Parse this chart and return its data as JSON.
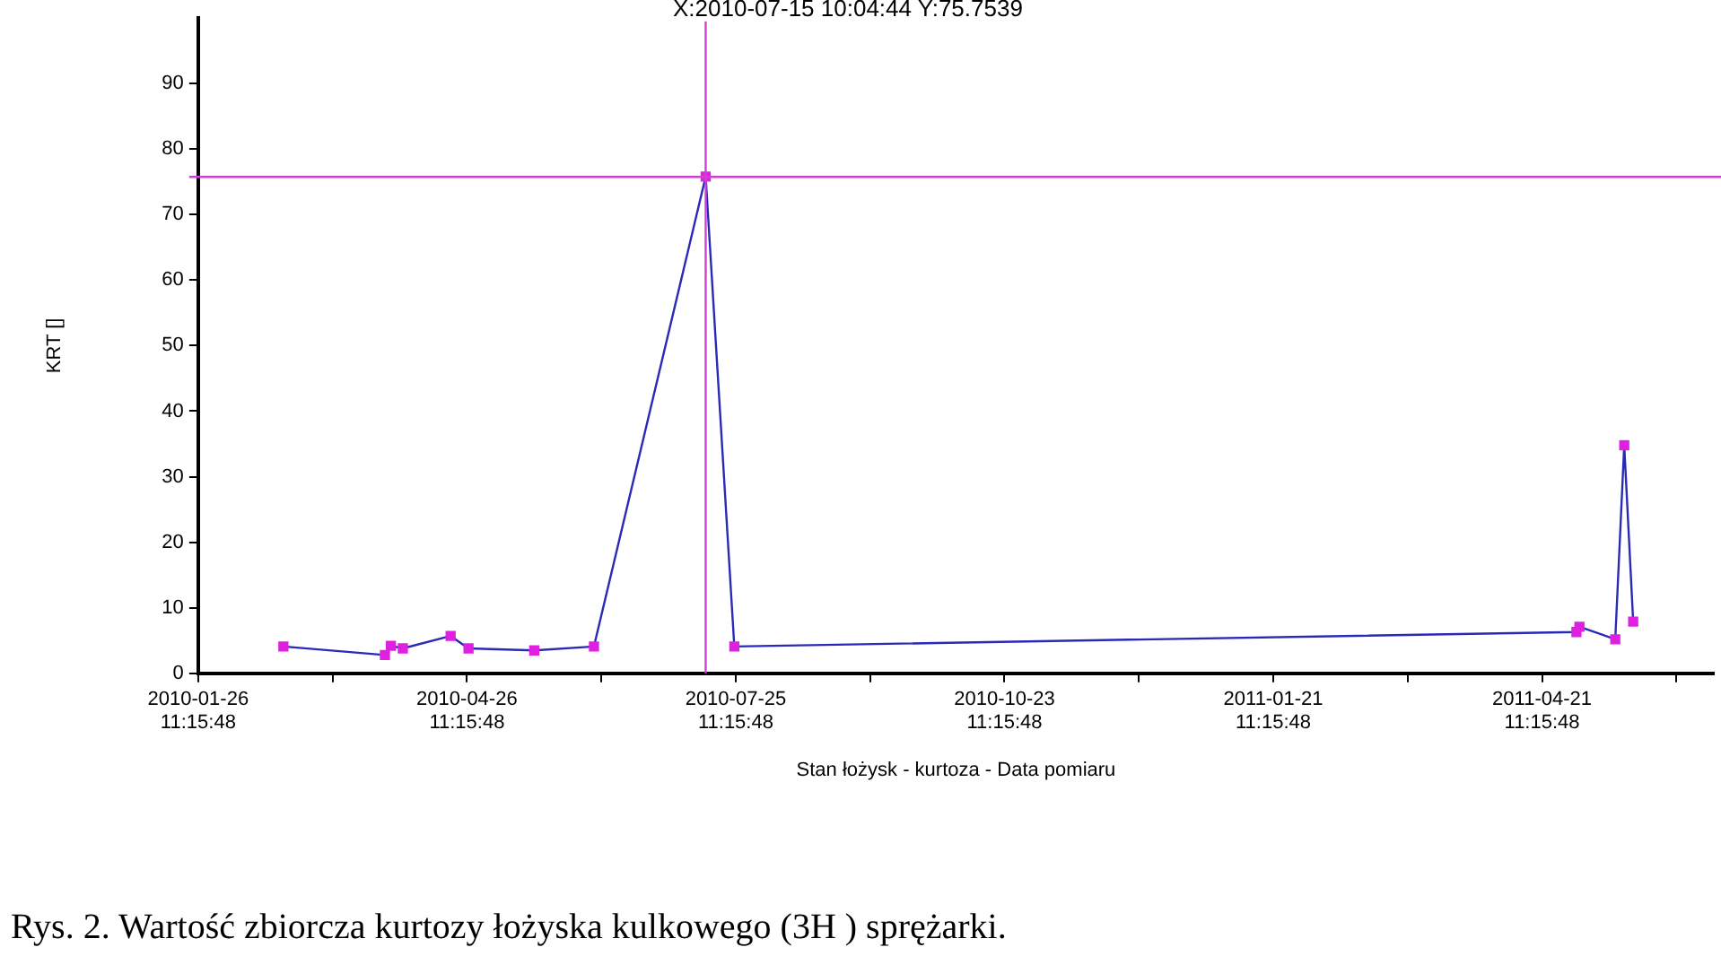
{
  "chart_data": {
    "type": "line",
    "ylabel": "KRT []",
    "xlabel": "Stan łożysk - kurtoza - Data pomiaru",
    "annotations": [
      "X:2010-07-15 10:04:44  Y:75.7539",
      "Rys. 2. Wartość zbiorcza kurtozy łożyska kulkowego (3H ) sprężarki."
    ],
    "x": [
      "2010-02-24",
      "2010-03-30",
      "2010-04-01",
      "2010-04-05",
      "2010-04-21",
      "2010-04-27",
      "2010-05-19",
      "2010-06-08",
      "2010-07-15T10:04",
      "2010-07-25",
      "2011-05-03",
      "2011-05-04",
      "2011-05-16",
      "2011-05-19",
      "2011-05-22"
    ],
    "series": [
      {
        "color": "#2a2ab8",
        "colors": [
          "#e020e0",
          "#e020e0",
          "#e020e0",
          "#e020e0",
          "#e020e0",
          "#e020e0",
          "#e020e0",
          "#e020e0",
          "#e020e0",
          "#e020e0",
          "#e020e0",
          "#e020e0",
          "#e020e0",
          "#e020e0",
          "#e020e0"
        ],
        "values": [
          4.1,
          2.8,
          4.2,
          3.8,
          5.7,
          3.8,
          3.5,
          4.1,
          75.8,
          4.1,
          6.3,
          7.1,
          5.2,
          34.8,
          7.9
        ]
      }
    ],
    "marker": "square",
    "xlim": [
      "2010-01-26T11:15",
      "2011-06-18"
    ],
    "xticks": [
      {
        "value": "2010-01-26T11:15",
        "label": "2010-01-26 11:15:48"
      },
      {
        "value": "2010-03-12T11:15",
        "label": null
      },
      {
        "value": "2010-04-26T11:15",
        "label": "2010-04-26 11:15:48"
      },
      {
        "value": "2010-06-10T11:15",
        "label": null
      },
      {
        "value": "2010-07-25T11:15",
        "label": "2010-07-25 11:15:48"
      },
      {
        "value": "2010-09-08T11:15",
        "label": null
      },
      {
        "value": "2010-10-23T11:15",
        "label": "2010-10-23 11:15:48"
      },
      {
        "value": "2010-12-07T11:15",
        "label": null
      },
      {
        "value": "2011-01-21T11:15",
        "label": "2011-01-21 11:15:48"
      },
      {
        "value": "2011-03-07T11:15",
        "label": null
      },
      {
        "value": "2011-04-21T11:15",
        "label": "2011-04-21 11:15:48"
      },
      {
        "value": "2011-06-05T11:15",
        "label": null
      }
    ],
    "ylim": [
      0,
      100
    ],
    "yticks": [
      0,
      10,
      20,
      30,
      40,
      50,
      60,
      70,
      80,
      90
    ],
    "ref_lines": [
      {
        "axis": "x",
        "value": "2010-07-15T10:04",
        "color": "#d040d0"
      },
      {
        "axis": "y",
        "value": 75.7539,
        "color": "#d040d0"
      }
    ],
    "grid": false,
    "legend": false
  }
}
